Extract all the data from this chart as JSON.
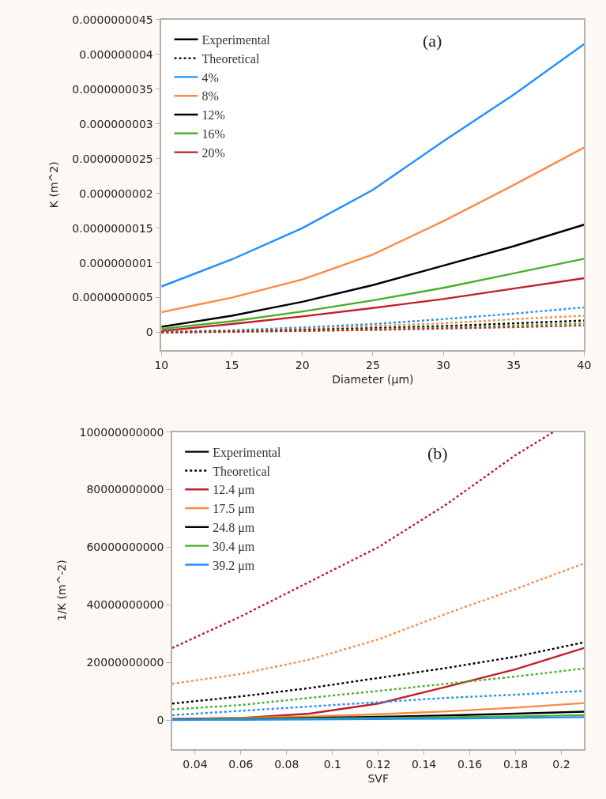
{
  "chart_data": [
    {
      "type": "line",
      "title": "(a)",
      "xlabel": "Diameter (μm)",
      "ylabel": "K (m^2)",
      "legend": "top left",
      "x": [
        10,
        15,
        20,
        25,
        30,
        35,
        40
      ],
      "xlim": [
        10,
        40
      ],
      "xticks": [
        10,
        15,
        20,
        25,
        30,
        35,
        40
      ],
      "ylim": [
        -2.5e-10,
        4.5e-09
      ],
      "yticks": [
        {
          "value": 0,
          "label": "0"
        },
        {
          "value": 5e-10,
          "label": "0.0000000005"
        },
        {
          "value": 1e-09,
          "label": "0.000000001"
        },
        {
          "value": 1.5e-09,
          "label": "0.0000000015"
        },
        {
          "value": 2e-09,
          "label": "0.000000002"
        },
        {
          "value": 2.5e-09,
          "label": "0.0000000025"
        },
        {
          "value": 3e-09,
          "label": "0.000000003"
        },
        {
          "value": 3.5e-09,
          "label": "0.0000000035"
        },
        {
          "value": 4e-09,
          "label": "0.000000004"
        },
        {
          "value": 4.5e-09,
          "label": "0.0000000045"
        }
      ],
      "series": [
        {
          "name": "Experimental",
          "color": "#000000",
          "line_style": "solid",
          "values": [
            null,
            null,
            null,
            null,
            null,
            null,
            null
          ]
        },
        {
          "name": "Theoretical",
          "color": "#000000",
          "line_style": "dotted",
          "values": [
            null,
            null,
            null,
            null,
            null,
            null,
            null
          ]
        },
        {
          "name": "4%",
          "color": "#1f8fff",
          "line_style": "solid",
          "values": [
            6.6e-10,
            1.05e-09,
            1.5e-09,
            2.05e-09,
            2.75e-09,
            3.42e-09,
            4.15e-09
          ]
        },
        {
          "name": "8%",
          "color": "#fb8a46",
          "line_style": "solid",
          "values": [
            2.9e-10,
            5e-10,
            7.6e-10,
            1.12e-09,
            1.6e-09,
            2.12e-09,
            2.66e-09
          ]
        },
        {
          "name": "12%",
          "color": "#000000",
          "line_style": "solid",
          "values": [
            8e-11,
            2.4e-10,
            4.4e-10,
            6.8e-10,
            9.6e-10,
            1.24e-09,
            1.55e-09
          ]
        },
        {
          "name": "16%",
          "color": "#47b029",
          "line_style": "solid",
          "values": [
            5e-11,
            1.6e-10,
            3e-10,
            4.6e-10,
            6.4e-10,
            8.5e-10,
            1.06e-09
          ]
        },
        {
          "name": "20%",
          "color": "#c0202a",
          "line_style": "solid",
          "values": [
            2e-11,
            1.2e-10,
            2.3e-10,
            3.5e-10,
            4.8e-10,
            6.3e-10,
            7.8e-10
          ]
        },
        {
          "color": "#1f8fff",
          "line_style": "dotted",
          "values": [
            1e-11,
            3e-11,
            7e-11,
            1.2e-10,
            1.9e-10,
            2.7e-10,
            3.6e-10
          ]
        },
        {
          "color": "#fb8a46",
          "line_style": "dotted",
          "values": [
            5e-12,
            2e-11,
            5e-11,
            9e-11,
            1.3e-10,
            1.9e-10,
            2.4e-10
          ]
        },
        {
          "color": "#000000",
          "line_style": "dotted",
          "values": [
            0,
            1.5e-11,
            3.5e-11,
            6e-11,
            9e-11,
            1.3e-10,
            1.7e-10
          ]
        },
        {
          "color": "#47b029",
          "line_style": "dotted",
          "values": [
            0,
            1e-11,
            2.5e-11,
            4.5e-11,
            7e-11,
            1e-10,
            1.3e-10
          ]
        },
        {
          "color": "#c0202a",
          "line_style": "dotted",
          "values": [
            0,
            8e-12,
            2e-11,
            3.5e-11,
            5.5e-11,
            7.5e-11,
            1e-10
          ]
        }
      ]
    },
    {
      "type": "line",
      "title": "(b)",
      "xlabel": "SVF",
      "ylabel": "1/K (m^-2)",
      "legend": "top left",
      "x": [
        0.03,
        0.06,
        0.09,
        0.12,
        0.15,
        0.18,
        0.21
      ],
      "xlim": [
        0.03,
        0.21
      ],
      "xticks": [
        0.04,
        0.06,
        0.08,
        0.1,
        0.12,
        0.14,
        0.16,
        0.18,
        0.2
      ],
      "ylim": [
        -10000000000,
        100000000000
      ],
      "yticks": [
        0,
        20000000000,
        40000000000,
        60000000000,
        80000000000,
        100000000000
      ],
      "series": [
        {
          "name": "Experimental",
          "color": "#000000",
          "line_style": "solid",
          "values": [
            null,
            null,
            null,
            null,
            null,
            null,
            null
          ]
        },
        {
          "name": "Theoretical",
          "color": "#000000",
          "line_style": "dotted",
          "values": [
            null,
            null,
            null,
            null,
            null,
            null,
            null
          ]
        },
        {
          "name": "12.4 μm",
          "color": "#c0202a",
          "line_style": "solid",
          "values": [
            400000000,
            700000000,
            2200000000,
            5700000000,
            11600000000,
            17600000000,
            25000000000
          ]
        },
        {
          "name": "17.5 μm",
          "color": "#fb8a46",
          "line_style": "solid",
          "values": [
            300000000,
            700000000,
            1200000000,
            2000000000,
            3000000000,
            4300000000,
            5900000000
          ]
        },
        {
          "name": "24.8 μm",
          "color": "#000000",
          "line_style": "solid",
          "values": [
            200000000,
            400000000,
            700000000,
            1100000000,
            1600000000,
            2200000000,
            2900000000
          ]
        },
        {
          "name": "30.4 μm",
          "color": "#47b029",
          "line_style": "solid",
          "values": [
            100000000,
            300000000,
            500000000,
            700000000,
            1000000000,
            1300000000,
            1700000000
          ]
        },
        {
          "name": "39.2 μm",
          "color": "#1f8fff",
          "line_style": "solid",
          "values": [
            0,
            100000000,
            200000000,
            350000000,
            500000000,
            750000000,
            1000000000
          ]
        },
        {
          "color": "#c0143c",
          "line_style": "dotted",
          "x": [
            0.03,
            0.06,
            0.09,
            0.12,
            0.15,
            0.18,
            0.1965
          ],
          "values": [
            25000000000,
            36000000000,
            48000000000,
            60000000000,
            75000000000,
            92000000000,
            100000000000
          ]
        },
        {
          "color": "#fb8a46",
          "line_style": "dotted",
          "values": [
            12600000000,
            16000000000,
            21000000000,
            28000000000,
            37000000000,
            45500000000,
            54400000000
          ]
        },
        {
          "color": "#000000",
          "line_style": "dotted",
          "values": [
            5700000000,
            8200000000,
            11100000000,
            14600000000,
            18100000000,
            22000000000,
            27000000000
          ]
        },
        {
          "color": "#47b029",
          "line_style": "dotted",
          "values": [
            3700000000,
            5200000000,
            7700000000,
            10100000000,
            12600000000,
            15100000000,
            17900000000
          ]
        },
        {
          "color": "#1f8fff",
          "line_style": "dotted",
          "values": [
            1700000000,
            3200000000,
            4700000000,
            6200000000,
            7700000000,
            8800000000,
            10100000000
          ]
        }
      ]
    }
  ]
}
